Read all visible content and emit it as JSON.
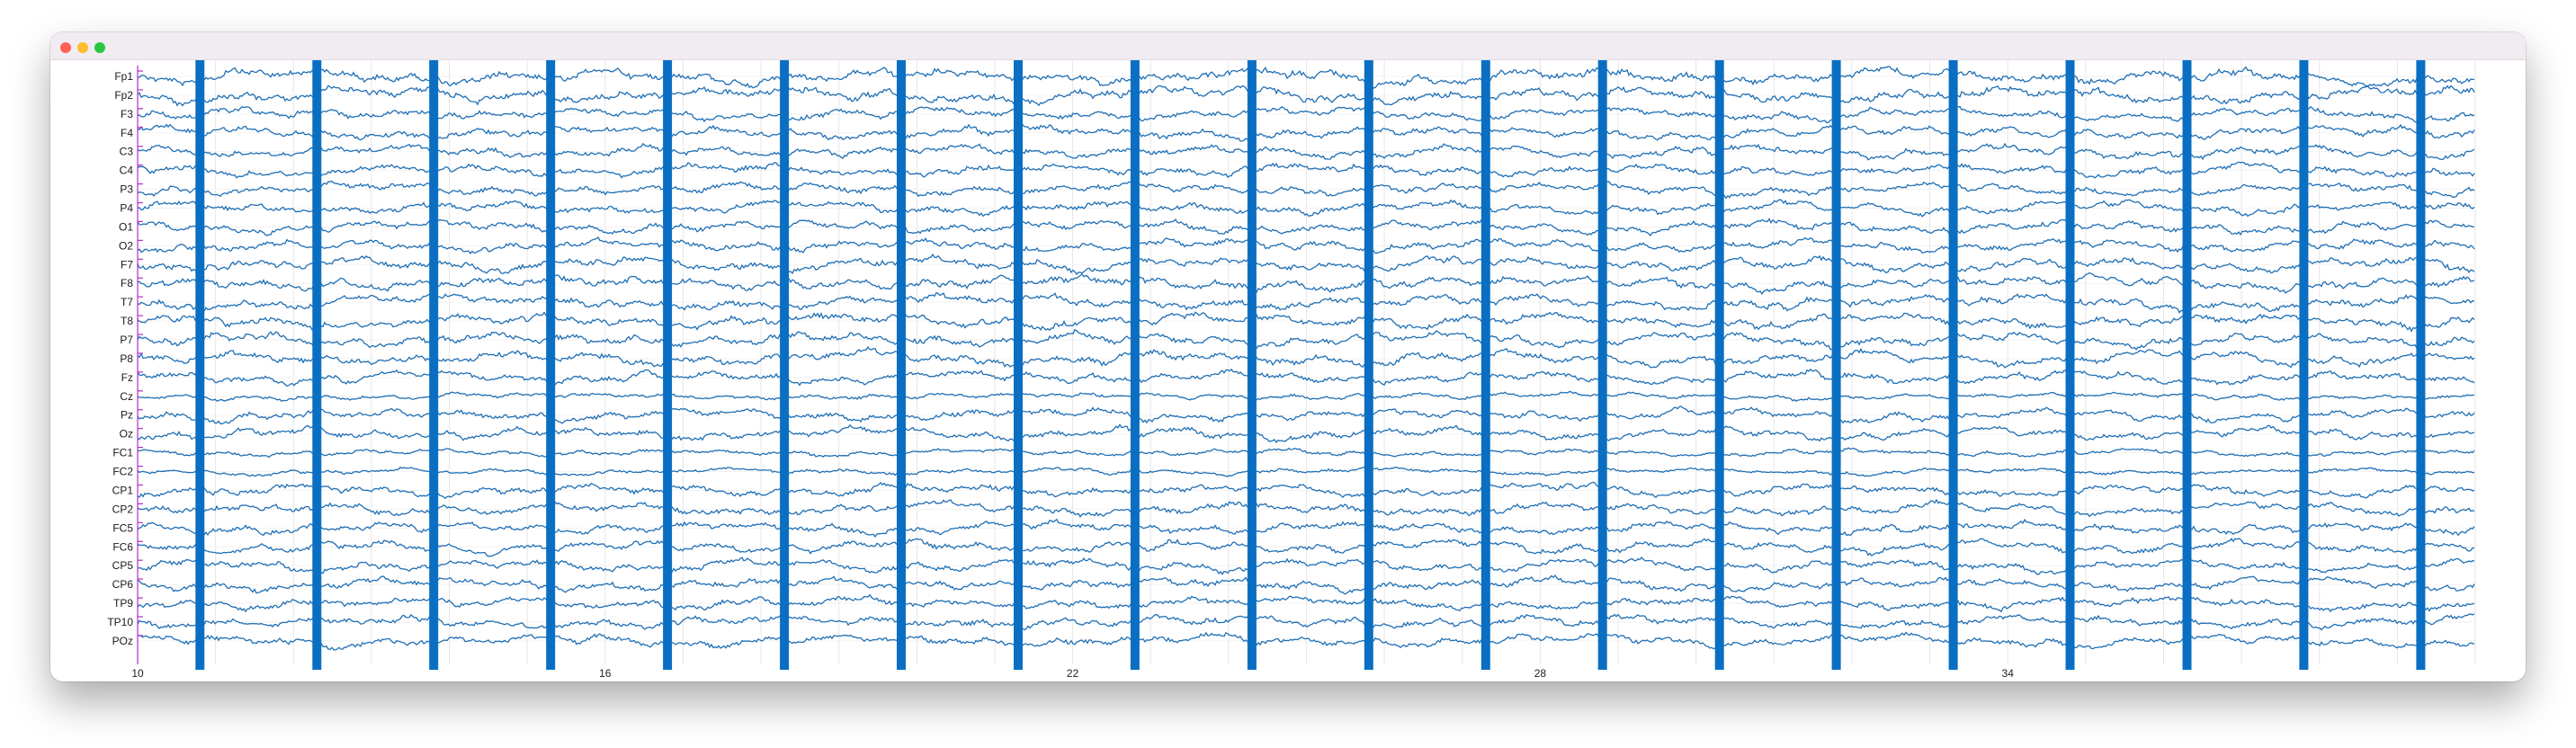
{
  "window": {
    "buttons": [
      "close",
      "minimize",
      "zoom"
    ]
  },
  "chart_data": {
    "type": "line",
    "title": "",
    "xlabel": "",
    "ylabel": "",
    "xlim": [
      10,
      40
    ],
    "x_tick_labels": [
      "10",
      "16",
      "22",
      "28",
      "34"
    ],
    "x_ticks": [
      10,
      16,
      22,
      28,
      34
    ],
    "channels": [
      "Fp1",
      "Fp2",
      "F3",
      "F4",
      "C3",
      "C4",
      "P3",
      "P4",
      "O1",
      "O2",
      "F7",
      "F8",
      "T7",
      "T8",
      "P7",
      "P8",
      "Fz",
      "Cz",
      "Pz",
      "Oz",
      "FC1",
      "FC2",
      "CP1",
      "CP2",
      "FC5",
      "FC6",
      "CP5",
      "CP6",
      "TP9",
      "TP10",
      "POz"
    ],
    "artifact_times": [
      10.8,
      12.3,
      13.8,
      15.3,
      16.8,
      18.3,
      19.8,
      21.3,
      22.8,
      24.3,
      25.8,
      27.3,
      28.8,
      30.3,
      31.8,
      33.3,
      34.8,
      36.3,
      37.8,
      39.3
    ],
    "grid": true,
    "colors": {
      "trace": "#1f6fb5",
      "artifact": "#0a6fc2",
      "scale_bar": "#b02fc4",
      "grid": "#e6e6e6"
    }
  }
}
